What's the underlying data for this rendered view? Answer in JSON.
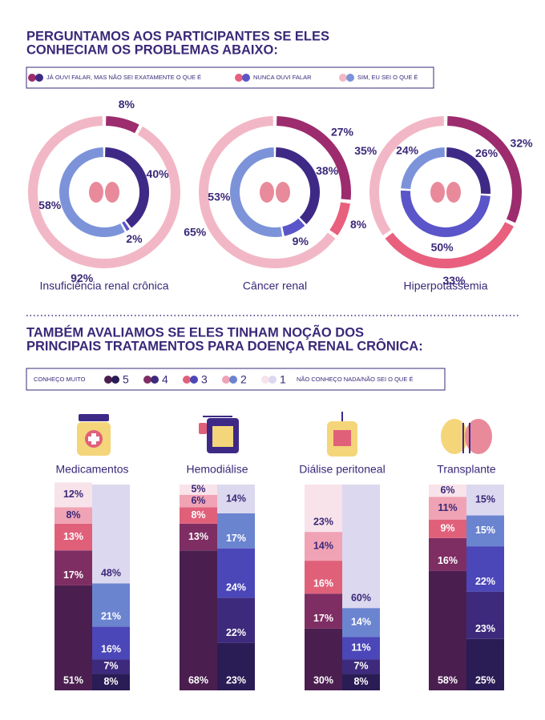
{
  "header": {
    "title_lines": [
      "PERGUNTAMOS AOS PARTICIPANTES SE ELES",
      "CONHECIAM OS PROBLEMAS ABAIXO:"
    ]
  },
  "donut_legend": {
    "categories": [
      "JÁ OUVI FALAR, MAS NÃO SEI EXATAMENTE O QUE É",
      "NUNCA OUVI FALAR",
      "SIM, EU SEI O QUE É"
    ],
    "outer_colors": [
      "#9c2c6e",
      "#e8607d",
      "#f2b7c6"
    ],
    "inner_colors": [
      "#3e2a86",
      "#5a55c8",
      "#7c93da"
    ]
  },
  "section2": {
    "title_lines": [
      "TAMBÉM AVALIAMOS SE ELES TINHAM NOÇÃO DOS",
      "PRINCIPAIS TRATAMENTOS PARA DOENÇA RENAL CRÔNICA:"
    ],
    "legend": {
      "low_label": "CONHEÇO MUITO",
      "levels": [
        "5",
        "4",
        "3",
        "2",
        "1"
      ],
      "high_label": "NÃO CONHEÇO NADA/NÃO SEI O QUE É"
    }
  },
  "chart_data": [
    {
      "type": "donut",
      "title": "Insuficiência renal crônica",
      "rings": [
        {
          "values": [
            8,
            null,
            92
          ],
          "value_labels": [
            "8%",
            null,
            "92%"
          ]
        },
        {
          "values": [
            40,
            2,
            58
          ],
          "value_labels": [
            "40%",
            "2%",
            "58%"
          ]
        }
      ]
    },
    {
      "type": "donut",
      "title": "Câncer renal",
      "rings": [
        {
          "values": [
            27,
            8,
            65
          ],
          "value_labels": [
            "27%",
            "8%",
            "65%"
          ]
        },
        {
          "values": [
            38,
            9,
            53
          ],
          "value_labels": [
            "38%",
            "9%",
            "53%"
          ]
        }
      ]
    },
    {
      "type": "donut",
      "title": "Hiperpotassemia",
      "rings": [
        {
          "values": [
            32,
            33,
            35
          ],
          "value_labels": [
            "32%",
            "33%",
            "35%"
          ]
        },
        {
          "values": [
            26,
            50,
            24
          ],
          "value_labels": [
            "26%",
            "50%",
            "24%"
          ]
        }
      ]
    },
    {
      "type": "stacked-bar",
      "ylim": [
        0,
        100
      ],
      "series_colors": [
        [
          "#4a1f4f",
          "#7e2e63",
          "#e0607a",
          "#f0a3b4",
          "#f8e3ea"
        ],
        [
          "#2a1c55",
          "#3d2a7c",
          "#4b47b8",
          "#6b84d0",
          "#dcd8ef"
        ]
      ],
      "groups": [
        {
          "name": "Medicamentos",
          "series": [
            {
              "values": [
                51,
                17,
                13,
                8,
                12
              ],
              "value_labels": [
                "51%",
                "17%",
                "13%",
                "8%",
                "12%"
              ]
            },
            {
              "values": [
                8,
                7,
                16,
                21,
                48
              ],
              "value_labels": [
                "8%",
                "7%",
                "16%",
                "21%",
                "48%"
              ]
            }
          ]
        },
        {
          "name": "Hemodiálise",
          "series": [
            {
              "values": [
                68,
                13,
                8,
                6,
                5
              ],
              "value_labels": [
                "68%",
                "13%",
                "8%",
                "6%",
                "5%"
              ]
            },
            {
              "values": [
                23,
                22,
                24,
                17,
                14
              ],
              "value_labels": [
                "23%",
                "22%",
                "24%",
                "17%",
                "14%"
              ]
            }
          ]
        },
        {
          "name": "Diálise peritoneal",
          "series": [
            {
              "values": [
                30,
                17,
                16,
                14,
                23
              ],
              "value_labels": [
                "30%",
                "17%",
                "16%",
                "14%",
                "23%"
              ]
            },
            {
              "values": [
                8,
                7,
                11,
                14,
                60
              ],
              "value_labels": [
                "8%",
                "7%",
                "11%",
                "14%",
                "60%"
              ]
            }
          ]
        },
        {
          "name": "Transplante",
          "series": [
            {
              "values": [
                58,
                16,
                9,
                11,
                6
              ],
              "value_labels": [
                "58%",
                "16%",
                "9%",
                "11%",
                "6%"
              ]
            },
            {
              "values": [
                25,
                23,
                22,
                15,
                15
              ],
              "value_labels": [
                "25%",
                "23%",
                "22%",
                "15%",
                "15%"
              ]
            }
          ]
        }
      ]
    }
  ]
}
